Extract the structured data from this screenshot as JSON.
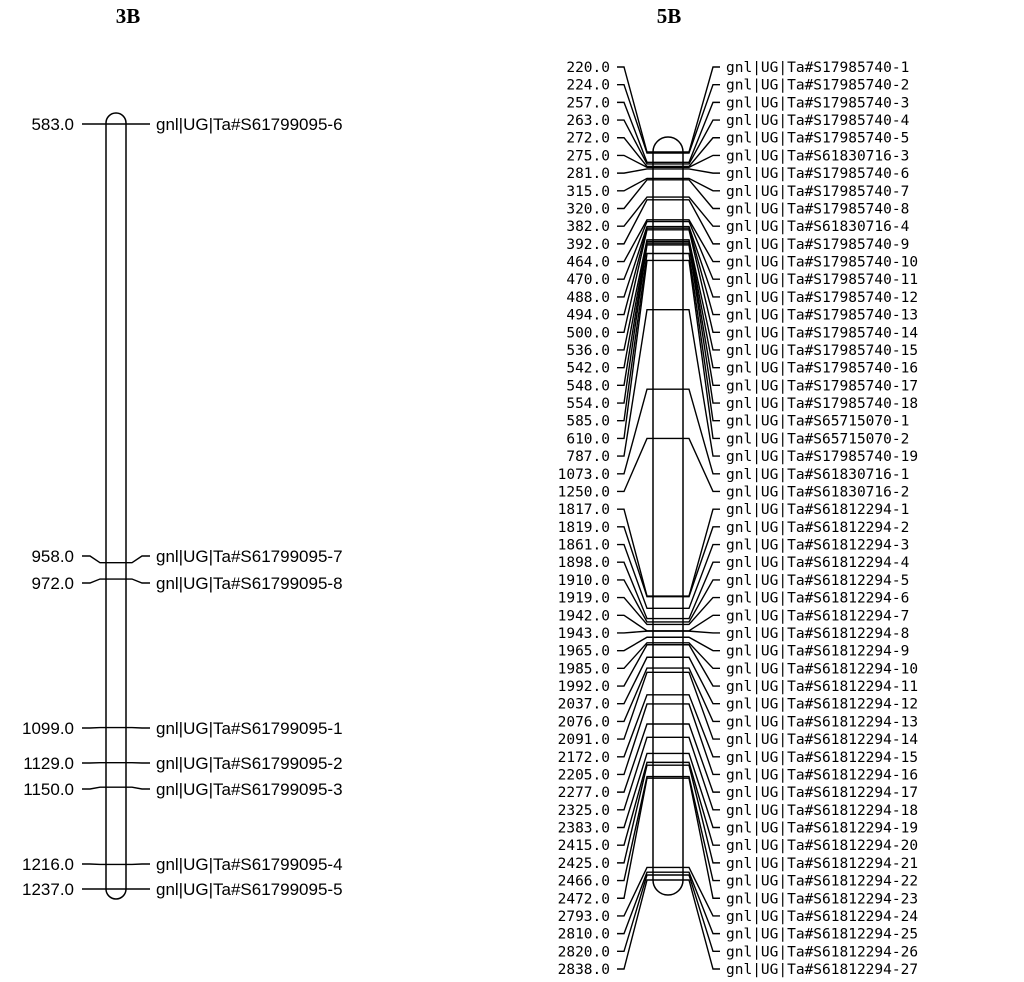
{
  "chromosomes": [
    {
      "name": "3B",
      "markers": [
        {
          "pos": "583.0",
          "label": "gnl|UG|Ta#S61799095-6"
        },
        {
          "pos": "958.0",
          "label": "gnl|UG|Ta#S61799095-7"
        },
        {
          "pos": "972.0",
          "label": "gnl|UG|Ta#S61799095-8"
        },
        {
          "pos": "1099.0",
          "label": "gnl|UG|Ta#S61799095-1"
        },
        {
          "pos": "1129.0",
          "label": "gnl|UG|Ta#S61799095-2"
        },
        {
          "pos": "1150.0",
          "label": "gnl|UG|Ta#S61799095-3"
        },
        {
          "pos": "1216.0",
          "label": "gnl|UG|Ta#S61799095-4"
        },
        {
          "pos": "1237.0",
          "label": "gnl|UG|Ta#S61799095-5"
        }
      ]
    },
    {
      "name": "5B",
      "markers": [
        {
          "pos": "220.0",
          "label": "gnl|UG|Ta#S17985740-1"
        },
        {
          "pos": "224.0",
          "label": "gnl|UG|Ta#S17985740-2"
        },
        {
          "pos": "257.0",
          "label": "gnl|UG|Ta#S17985740-3"
        },
        {
          "pos": "263.0",
          "label": "gnl|UG|Ta#S17985740-4"
        },
        {
          "pos": "272.0",
          "label": "gnl|UG|Ta#S17985740-5"
        },
        {
          "pos": "275.0",
          "label": "gnl|UG|Ta#S61830716-3"
        },
        {
          "pos": "281.0",
          "label": "gnl|UG|Ta#S17985740-6"
        },
        {
          "pos": "315.0",
          "label": "gnl|UG|Ta#S17985740-7"
        },
        {
          "pos": "320.0",
          "label": "gnl|UG|Ta#S17985740-8"
        },
        {
          "pos": "382.0",
          "label": "gnl|UG|Ta#S61830716-4"
        },
        {
          "pos": "392.0",
          "label": "gnl|UG|Ta#S17985740-9"
        },
        {
          "pos": "464.0",
          "label": "gnl|UG|Ta#S17985740-10"
        },
        {
          "pos": "470.0",
          "label": "gnl|UG|Ta#S17985740-11"
        },
        {
          "pos": "488.0",
          "label": "gnl|UG|Ta#S17985740-12"
        },
        {
          "pos": "494.0",
          "label": "gnl|UG|Ta#S17985740-13"
        },
        {
          "pos": "500.0",
          "label": "gnl|UG|Ta#S17985740-14"
        },
        {
          "pos": "536.0",
          "label": "gnl|UG|Ta#S17985740-15"
        },
        {
          "pos": "542.0",
          "label": "gnl|UG|Ta#S17985740-16"
        },
        {
          "pos": "548.0",
          "label": "gnl|UG|Ta#S17985740-17"
        },
        {
          "pos": "554.0",
          "label": "gnl|UG|Ta#S17985740-18"
        },
        {
          "pos": "585.0",
          "label": "gnl|UG|Ta#S65715070-1"
        },
        {
          "pos": "610.0",
          "label": "gnl|UG|Ta#S65715070-2"
        },
        {
          "pos": "787.0",
          "label": "gnl|UG|Ta#S17985740-19"
        },
        {
          "pos": "1073.0",
          "label": "gnl|UG|Ta#S61830716-1"
        },
        {
          "pos": "1250.0",
          "label": "gnl|UG|Ta#S61830716-2"
        },
        {
          "pos": "1817.0",
          "label": "gnl|UG|Ta#S61812294-1"
        },
        {
          "pos": "1819.0",
          "label": "gnl|UG|Ta#S61812294-2"
        },
        {
          "pos": "1861.0",
          "label": "gnl|UG|Ta#S61812294-3"
        },
        {
          "pos": "1898.0",
          "label": "gnl|UG|Ta#S61812294-4"
        },
        {
          "pos": "1910.0",
          "label": "gnl|UG|Ta#S61812294-5"
        },
        {
          "pos": "1919.0",
          "label": "gnl|UG|Ta#S61812294-6"
        },
        {
          "pos": "1942.0",
          "label": "gnl|UG|Ta#S61812294-7"
        },
        {
          "pos": "1943.0",
          "label": "gnl|UG|Ta#S61812294-8"
        },
        {
          "pos": "1965.0",
          "label": "gnl|UG|Ta#S61812294-9"
        },
        {
          "pos": "1985.0",
          "label": "gnl|UG|Ta#S61812294-10"
        },
        {
          "pos": "1992.0",
          "label": "gnl|UG|Ta#S61812294-11"
        },
        {
          "pos": "2037.0",
          "label": "gnl|UG|Ta#S61812294-12"
        },
        {
          "pos": "2076.0",
          "label": "gnl|UG|Ta#S61812294-13"
        },
        {
          "pos": "2091.0",
          "label": "gnl|UG|Ta#S61812294-14"
        },
        {
          "pos": "2172.0",
          "label": "gnl|UG|Ta#S61812294-15"
        },
        {
          "pos": "2205.0",
          "label": "gnl|UG|Ta#S61812294-16"
        },
        {
          "pos": "2277.0",
          "label": "gnl|UG|Ta#S61812294-17"
        },
        {
          "pos": "2325.0",
          "label": "gnl|UG|Ta#S61812294-18"
        },
        {
          "pos": "2383.0",
          "label": "gnl|UG|Ta#S61812294-19"
        },
        {
          "pos": "2415.0",
          "label": "gnl|UG|Ta#S61812294-20"
        },
        {
          "pos": "2425.0",
          "label": "gnl|UG|Ta#S61812294-21"
        },
        {
          "pos": "2466.0",
          "label": "gnl|UG|Ta#S61812294-22"
        },
        {
          "pos": "2472.0",
          "label": "gnl|UG|Ta#S61812294-23"
        },
        {
          "pos": "2793.0",
          "label": "gnl|UG|Ta#S61812294-24"
        },
        {
          "pos": "2810.0",
          "label": "gnl|UG|Ta#S61812294-25"
        },
        {
          "pos": "2820.0",
          "label": "gnl|UG|Ta#S61812294-26"
        },
        {
          "pos": "2838.0",
          "label": "gnl|UG|Ta#S61812294-27"
        }
      ]
    }
  ]
}
